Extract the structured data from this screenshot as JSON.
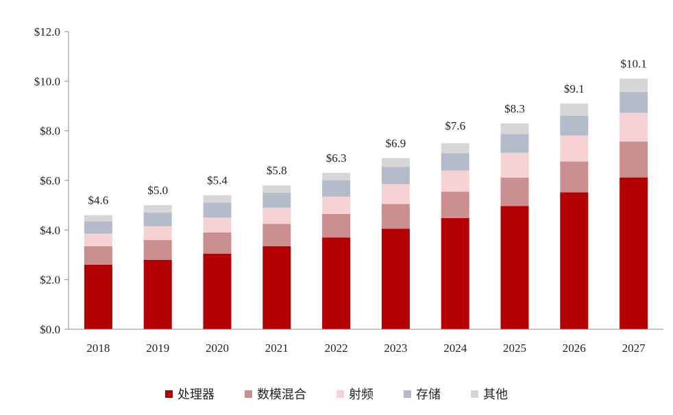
{
  "chart_data": {
    "type": "bar",
    "stacked": true,
    "categories": [
      "2018",
      "2019",
      "2020",
      "2021",
      "2022",
      "2023",
      "2024",
      "2025",
      "2026",
      "2027"
    ],
    "series": [
      {
        "name": "处理器",
        "color": "#b40000",
        "values": [
          2.6,
          2.8,
          3.05,
          3.35,
          3.7,
          4.05,
          4.48,
          4.97,
          5.52,
          6.12
        ]
      },
      {
        "name": "数模混合",
        "color": "#cc8f8f",
        "values": [
          0.75,
          0.8,
          0.85,
          0.9,
          0.95,
          1.0,
          1.07,
          1.14,
          1.24,
          1.45
        ]
      },
      {
        "name": "射频",
        "color": "#f7d2d2",
        "values": [
          0.5,
          0.55,
          0.6,
          0.65,
          0.7,
          0.8,
          0.85,
          1.0,
          1.05,
          1.15
        ]
      },
      {
        "name": "存储",
        "color": "#b4bccb",
        "values": [
          0.5,
          0.55,
          0.6,
          0.6,
          0.65,
          0.7,
          0.7,
          0.76,
          0.8,
          0.85
        ]
      },
      {
        "name": "其他",
        "color": "#d6d6d6",
        "values": [
          0.25,
          0.3,
          0.3,
          0.3,
          0.3,
          0.35,
          0.4,
          0.43,
          0.49,
          0.53
        ]
      }
    ],
    "totals": [
      4.6,
      5.0,
      5.4,
      5.8,
      6.3,
      6.9,
      7.6,
      8.3,
      9.1,
      10.1
    ],
    "total_labels": [
      "$4.6",
      "$5.0",
      "$5.4",
      "$5.8",
      "$6.3",
      "$6.9",
      "$7.6",
      "$8.3",
      "$9.1",
      "$10.1"
    ],
    "y_ticks": [
      0,
      2,
      4,
      6,
      8,
      10,
      12
    ],
    "y_tick_labels": [
      "$0.0",
      "$2.0",
      "$4.0",
      "$6.0",
      "$8.0",
      "$10.0",
      "$12.0"
    ],
    "ylim": [
      0,
      12
    ],
    "title": "",
    "xlabel": "",
    "ylabel": "",
    "grid": false,
    "legend_position": "bottom"
  }
}
